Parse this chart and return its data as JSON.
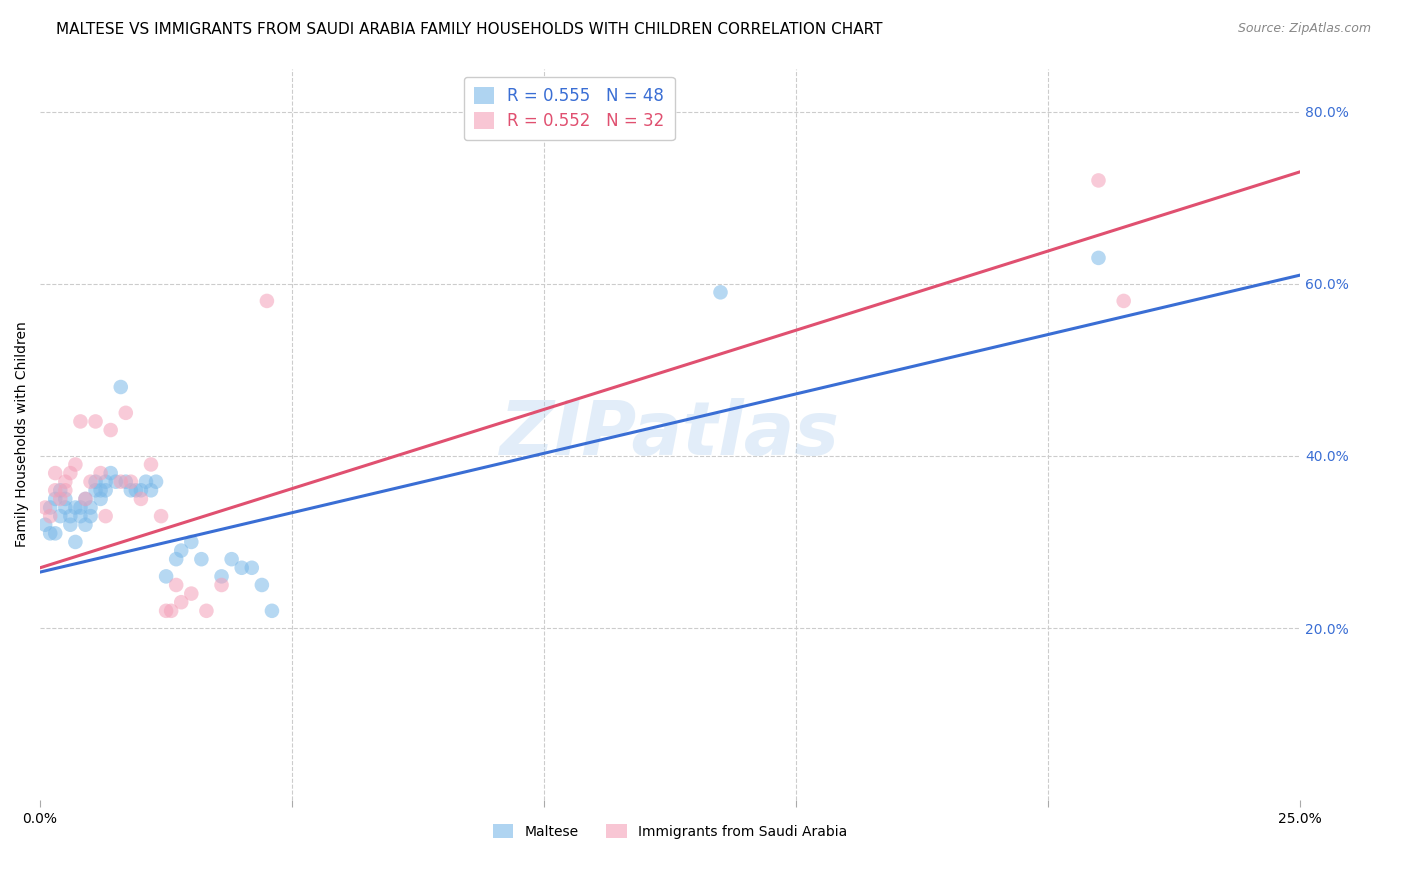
{
  "title": "MALTESE VS IMMIGRANTS FROM SAUDI ARABIA FAMILY HOUSEHOLDS WITH CHILDREN CORRELATION CHART",
  "source": "Source: ZipAtlas.com",
  "ylabel": "Family Households with Children",
  "xlim": [
    0.0,
    0.25
  ],
  "ylim": [
    0.0,
    0.85
  ],
  "x_tick_positions": [
    0.0,
    0.05,
    0.1,
    0.15,
    0.2,
    0.25
  ],
  "x_tick_labels": [
    "0.0%",
    "",
    "",
    "",
    "",
    "25.0%"
  ],
  "y_ticks_right": [
    0.2,
    0.4,
    0.6,
    0.8
  ],
  "y_tick_labels_right": [
    "20.0%",
    "40.0%",
    "60.0%",
    "80.0%"
  ],
  "legend_labels": [
    "Maltese",
    "Immigrants from Saudi Arabia"
  ],
  "legend_r_n_labels": [
    "R = 0.555   N = 48",
    "R = 0.552   N = 32"
  ],
  "blue_color": "#7ab8e8",
  "pink_color": "#f4a0b8",
  "blue_line_color": "#3a6ed4",
  "pink_line_color": "#e05070",
  "watermark": "ZIPatlas",
  "blue_scatter_x": [
    0.001,
    0.002,
    0.002,
    0.003,
    0.003,
    0.004,
    0.004,
    0.005,
    0.005,
    0.006,
    0.006,
    0.007,
    0.007,
    0.008,
    0.008,
    0.009,
    0.009,
    0.01,
    0.01,
    0.011,
    0.011,
    0.012,
    0.012,
    0.013,
    0.013,
    0.014,
    0.015,
    0.016,
    0.017,
    0.018,
    0.019,
    0.02,
    0.021,
    0.022,
    0.023,
    0.025,
    0.027,
    0.028,
    0.03,
    0.032,
    0.036,
    0.038,
    0.04,
    0.042,
    0.044,
    0.046,
    0.135,
    0.21
  ],
  "blue_scatter_y": [
    0.32,
    0.31,
    0.34,
    0.35,
    0.31,
    0.33,
    0.36,
    0.34,
    0.35,
    0.33,
    0.32,
    0.34,
    0.3,
    0.33,
    0.34,
    0.32,
    0.35,
    0.34,
    0.33,
    0.36,
    0.37,
    0.36,
    0.35,
    0.37,
    0.36,
    0.38,
    0.37,
    0.48,
    0.37,
    0.36,
    0.36,
    0.36,
    0.37,
    0.36,
    0.37,
    0.26,
    0.28,
    0.29,
    0.3,
    0.28,
    0.26,
    0.28,
    0.27,
    0.27,
    0.25,
    0.22,
    0.59,
    0.63
  ],
  "pink_scatter_x": [
    0.001,
    0.002,
    0.003,
    0.003,
    0.004,
    0.005,
    0.005,
    0.006,
    0.007,
    0.008,
    0.009,
    0.01,
    0.011,
    0.012,
    0.013,
    0.014,
    0.016,
    0.017,
    0.018,
    0.02,
    0.022,
    0.024,
    0.025,
    0.026,
    0.027,
    0.028,
    0.03,
    0.033,
    0.036,
    0.045,
    0.21,
    0.215
  ],
  "pink_scatter_y": [
    0.34,
    0.33,
    0.36,
    0.38,
    0.35,
    0.36,
    0.37,
    0.38,
    0.39,
    0.44,
    0.35,
    0.37,
    0.44,
    0.38,
    0.33,
    0.43,
    0.37,
    0.45,
    0.37,
    0.35,
    0.39,
    0.33,
    0.22,
    0.22,
    0.25,
    0.23,
    0.24,
    0.22,
    0.25,
    0.58,
    0.72,
    0.58
  ],
  "blue_line_x": [
    0.0,
    0.25
  ],
  "blue_line_y": [
    0.265,
    0.61
  ],
  "pink_line_x": [
    0.0,
    0.25
  ],
  "pink_line_y": [
    0.27,
    0.73
  ],
  "background_color": "#ffffff",
  "grid_color": "#cccccc",
  "title_fontsize": 11,
  "source_fontsize": 9,
  "label_fontsize": 10,
  "tick_fontsize": 10,
  "scatter_size": 110
}
